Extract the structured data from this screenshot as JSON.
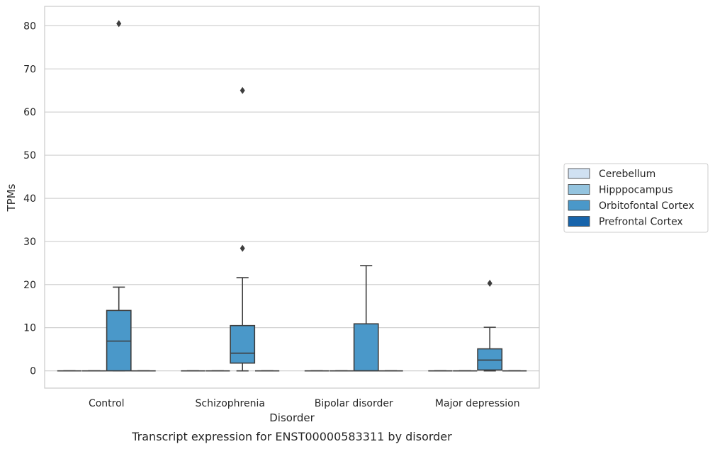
{
  "caption": "Transcript expression for ENST00000583311 by disorder",
  "chart_data": {
    "type": "box",
    "title": "",
    "xlabel": "Disorder",
    "ylabel": "TPMs",
    "categories": [
      "Control",
      "Schizophrenia",
      "Bipolar disorder",
      "Major depression"
    ],
    "ylim": [
      -4,
      84.5
    ],
    "yticks": [
      0,
      10,
      20,
      30,
      40,
      50,
      60,
      70,
      80
    ],
    "grid": "horizontal",
    "legend_position": "right",
    "series": [
      {
        "name": "Cerebellum",
        "color": "#d0e1f2",
        "boxes": [
          {
            "q1": 0,
            "median": 0,
            "q3": 0,
            "whisker_low": 0,
            "whisker_high": 0,
            "outliers": []
          },
          {
            "q1": 0,
            "median": 0,
            "q3": 0,
            "whisker_low": 0,
            "whisker_high": 0,
            "outliers": []
          },
          {
            "q1": 0,
            "median": 0,
            "q3": 0,
            "whisker_low": 0,
            "whisker_high": 0,
            "outliers": []
          },
          {
            "q1": 0,
            "median": 0,
            "q3": 0,
            "whisker_low": 0,
            "whisker_high": 0,
            "outliers": []
          }
        ]
      },
      {
        "name": "Hipppocampus",
        "color": "#94c4df",
        "boxes": [
          {
            "q1": 0,
            "median": 0,
            "q3": 0,
            "whisker_low": 0,
            "whisker_high": 0,
            "outliers": []
          },
          {
            "q1": 0,
            "median": 0,
            "q3": 0,
            "whisker_low": 0,
            "whisker_high": 0,
            "outliers": []
          },
          {
            "q1": 0,
            "median": 0,
            "q3": 0,
            "whisker_low": 0,
            "whisker_high": 0,
            "outliers": []
          },
          {
            "q1": 0,
            "median": 0,
            "q3": 0,
            "whisker_low": 0,
            "whisker_high": 0,
            "outliers": []
          }
        ]
      },
      {
        "name": "Orbitofontal Cortex",
        "color": "#4a98c9",
        "boxes": [
          {
            "q1": 0,
            "median": 6.9,
            "q3": 14.0,
            "whisker_low": 0,
            "whisker_high": 19.4,
            "outliers": [
              80.5
            ]
          },
          {
            "q1": 1.8,
            "median": 4.1,
            "q3": 10.5,
            "whisker_low": 0,
            "whisker_high": 21.6,
            "outliers": [
              65.0,
              28.4
            ]
          },
          {
            "q1": 0,
            "median": 0,
            "q3": 10.9,
            "whisker_low": 0,
            "whisker_high": 24.4,
            "outliers": []
          },
          {
            "q1": 0.2,
            "median": 2.5,
            "q3": 5.1,
            "whisker_low": 0,
            "whisker_high": 10.1,
            "outliers": [
              20.3
            ]
          }
        ]
      },
      {
        "name": "Prefrontal Cortex",
        "color": "#1764ab",
        "boxes": [
          {
            "q1": 0,
            "median": 0,
            "q3": 0,
            "whisker_low": 0,
            "whisker_high": 0,
            "outliers": []
          },
          {
            "q1": 0,
            "median": 0,
            "q3": 0,
            "whisker_low": 0,
            "whisker_high": 0,
            "outliers": []
          },
          {
            "q1": 0,
            "median": 0,
            "q3": 0,
            "whisker_low": 0,
            "whisker_high": 0,
            "outliers": []
          },
          {
            "q1": 0,
            "median": 0,
            "q3": 0,
            "whisker_low": 0,
            "whisker_high": 0,
            "outliers": []
          }
        ]
      }
    ]
  }
}
